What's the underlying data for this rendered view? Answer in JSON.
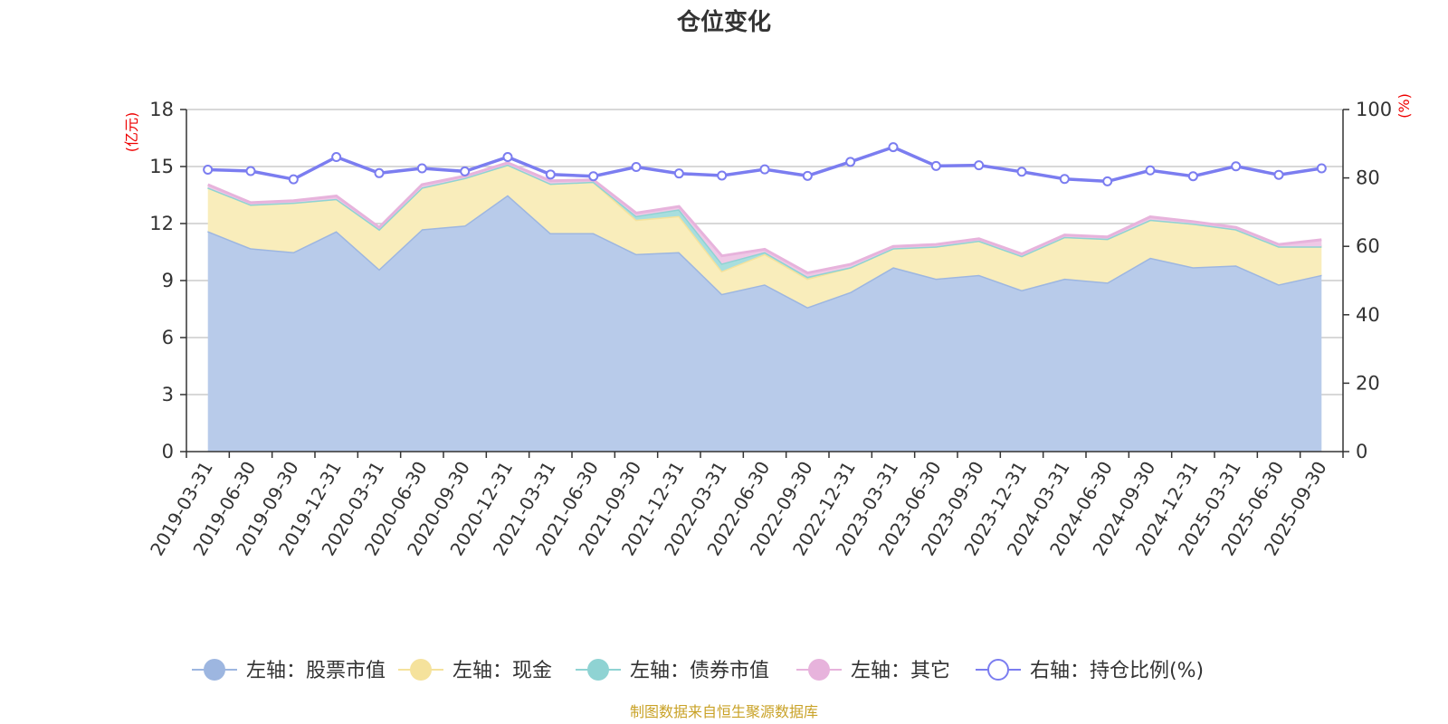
{
  "chart_data": {
    "type": "area",
    "title": "仓位变化",
    "left_axis_unit": "(亿元)",
    "right_axis_unit": "(%)",
    "left_ylim": [
      0,
      18
    ],
    "left_yticks": [
      0,
      3,
      6,
      9,
      12,
      15,
      18
    ],
    "right_ylim": [
      0,
      100
    ],
    "right_yticks": [
      0,
      20,
      40,
      60,
      80,
      100
    ],
    "categories": [
      "2019-03-31",
      "2019-06-30",
      "2019-09-30",
      "2019-12-31",
      "2020-03-31",
      "2020-06-30",
      "2020-09-30",
      "2020-12-31",
      "2021-03-31",
      "2021-06-30",
      "2021-09-30",
      "2021-12-31",
      "2022-03-31",
      "2022-06-30",
      "2022-09-30",
      "2022-12-31",
      "2023-03-31",
      "2023-06-30",
      "2023-09-30",
      "2023-12-31",
      "2024-03-31",
      "2024-06-30",
      "2024-09-30",
      "2024-12-31",
      "2025-03-31",
      "2025-06-30",
      "2025-09-30"
    ],
    "series": [
      {
        "name": "左轴：股票市值",
        "axis": "left",
        "stack": true,
        "color": "#9db6e0",
        "fill": "#b8cbea",
        "values": [
          11.6,
          10.7,
          10.5,
          11.6,
          9.6,
          11.7,
          11.9,
          13.5,
          11.5,
          11.5,
          10.4,
          10.5,
          8.3,
          8.8,
          7.6,
          8.4,
          9.7,
          9.1,
          9.3,
          8.5,
          9.1,
          8.9,
          10.2,
          9.7,
          9.8,
          8.8,
          9.3
        ]
      },
      {
        "name": "左轴：现金",
        "axis": "left",
        "stack": true,
        "color": "#f5e29c",
        "fill": "#f9edbb",
        "values": [
          2.3,
          2.3,
          2.6,
          1.7,
          2.1,
          2.2,
          2.5,
          1.6,
          2.6,
          2.7,
          1.8,
          1.9,
          1.2,
          1.6,
          1.5,
          1.3,
          1.0,
          1.7,
          1.8,
          1.8,
          2.2,
          2.3,
          2.0,
          2.3,
          1.9,
          2.0,
          1.5
        ]
      },
      {
        "name": "左轴：债券市值",
        "axis": "left",
        "stack": true,
        "color": "#8fd3d3",
        "fill": "#a8dede",
        "values": [
          0,
          0,
          0,
          0,
          0,
          0,
          0,
          0,
          0,
          0,
          0.2,
          0.35,
          0.4,
          0.1,
          0.1,
          0,
          0,
          0,
          0,
          0,
          0,
          0,
          0,
          0,
          0,
          0,
          0
        ]
      },
      {
        "name": "左轴：其它",
        "axis": "left",
        "stack": true,
        "color": "#e7b3dc",
        "fill": "#efc8e6",
        "values": [
          0.15,
          0.1,
          0.1,
          0.15,
          0.1,
          0.15,
          0.1,
          0.1,
          0.15,
          0.1,
          0.15,
          0.15,
          0.4,
          0.15,
          0.2,
          0.15,
          0.1,
          0.1,
          0.1,
          0.1,
          0.1,
          0.1,
          0.15,
          0.1,
          0.1,
          0.1,
          0.35
        ]
      },
      {
        "name": "右轴：持仓比例(%)",
        "axis": "right",
        "type": "line",
        "color": "#7b7df0",
        "values": [
          82.4,
          82.0,
          79.6,
          86.1,
          81.4,
          82.8,
          81.9,
          86.1,
          81.0,
          80.5,
          83.2,
          81.3,
          80.7,
          82.5,
          80.6,
          84.7,
          89.0,
          83.5,
          83.7,
          81.8,
          79.7,
          79.0,
          82.2,
          80.5,
          83.4,
          80.9,
          82.8
        ]
      }
    ],
    "legend": [
      "左轴：股票市值",
      "左轴：现金",
      "左轴：债券市值",
      "左轴：其它",
      "右轴：持仓比例(%)"
    ],
    "legend_position": "bottom",
    "source_note": "制图数据来自恒生聚源数据库"
  }
}
